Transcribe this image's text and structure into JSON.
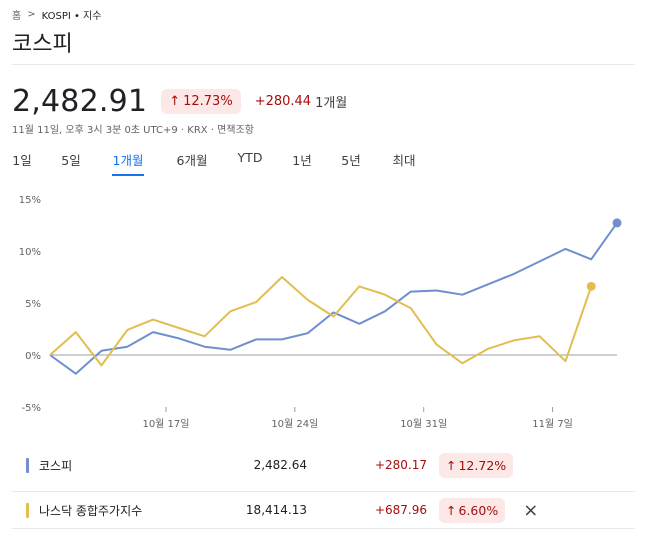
{
  "breadcrumb": {
    "home": "홈",
    "sep": ">",
    "current": "KOSPI • 지수"
  },
  "title": "코스피",
  "quote": {
    "price": "2,482.91",
    "pct_change": "12.73%",
    "abs_change": "+280.44",
    "period": "1개월",
    "meta": "11월 11일, 오후 3시 3분 0초 UTC+9 · KRX · 면책조항"
  },
  "tabs": [
    {
      "label": "1일",
      "active": false
    },
    {
      "label": "5일",
      "active": false
    },
    {
      "label": "1개월",
      "active": true
    },
    {
      "label": "6개월",
      "active": false
    },
    {
      "label": "YTD",
      "active": false
    },
    {
      "label": "1년",
      "active": false
    },
    {
      "label": "5년",
      "active": false
    },
    {
      "label": "최대",
      "active": false
    }
  ],
  "colors": {
    "kospi": "#6f8fcf",
    "nasdaq": "#e2be4f",
    "negative_bg": "#fce8e6",
    "negative_text": "#a50e0e",
    "accent": "#1a73e8"
  },
  "chart_data": {
    "type": "line",
    "ylim": [
      -5,
      15
    ],
    "y_ticks": [
      "15%",
      "10%",
      "5%",
      "0%",
      "-5%"
    ],
    "y_tick_values": [
      15,
      10,
      5,
      0,
      -5
    ],
    "x_tick_labels": [
      "10월 17일",
      "10월 24일",
      "10월 31일",
      "11월 7일"
    ],
    "x_tick_index": [
      4.5,
      9.5,
      14.5,
      19.5
    ],
    "baseline": 0,
    "series": [
      {
        "name": "코스피",
        "values": [
          0,
          -1.8,
          0.4,
          0.8,
          2.2,
          1.6,
          0.8,
          0.5,
          1.5,
          1.5,
          2.1,
          4.1,
          3.0,
          4.2,
          6.1,
          6.2,
          5.8,
          6.8,
          7.8,
          9.0,
          10.2,
          9.2,
          12.7
        ]
      },
      {
        "name": "나스닥 종합주가지수",
        "values": [
          0,
          2.2,
          -1.0,
          2.4,
          3.4,
          2.6,
          1.8,
          4.2,
          5.1,
          7.5,
          5.3,
          3.7,
          6.6,
          5.8,
          4.5,
          1.0,
          -0.8,
          0.6,
          1.4,
          1.8,
          -0.6,
          6.6
        ]
      }
    ]
  },
  "legend": [
    {
      "name": "코스피",
      "value": "2,482.64",
      "abs_change": "+280.17",
      "pct_change": "12.72%"
    },
    {
      "name": "나스닥 종합주가지수",
      "value": "18,414.13",
      "abs_change": "+687.96",
      "pct_change": "6.60%"
    }
  ],
  "close_icon": "×",
  "up_arrow": "↑"
}
